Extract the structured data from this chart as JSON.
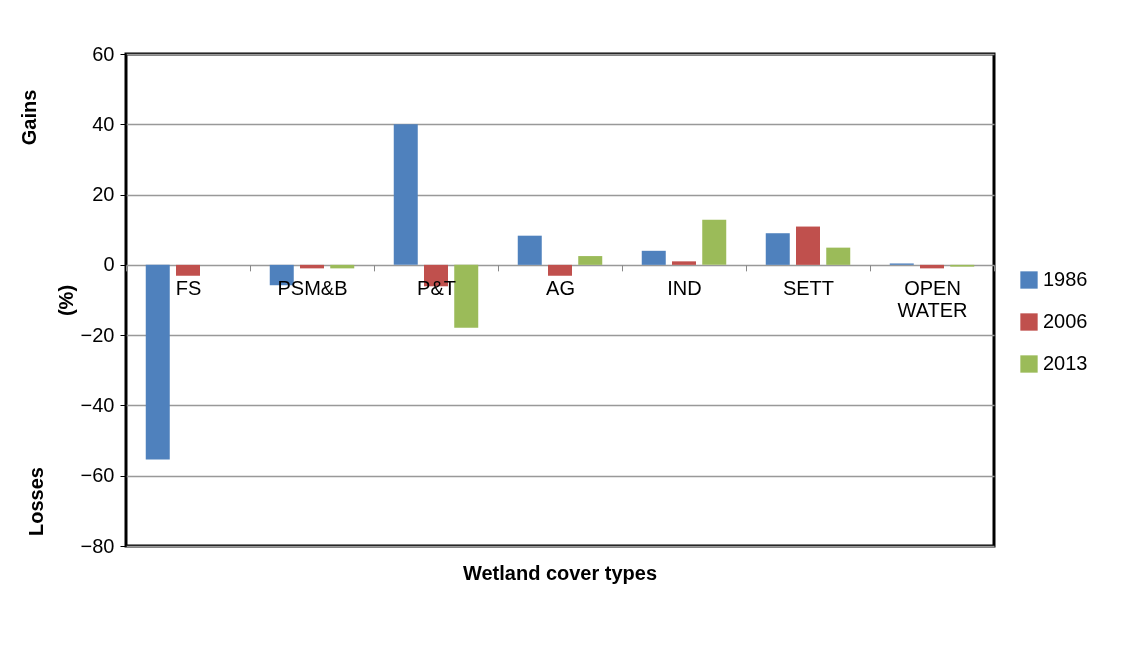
{
  "chart_data": {
    "type": "bar",
    "xlabel": "Wetland cover types",
    "ylabel": "(%)",
    "annotations": [
      "Gains",
      "Losses"
    ],
    "categories": [
      "FS",
      "PSM&B",
      "P&T",
      "AG",
      "IND",
      "SETT",
      "OPEN WATER"
    ],
    "series": [
      {
        "name": "1986",
        "color": "#4f81bd",
        "values": [
          -55.4,
          -5.8,
          40,
          8.3,
          4.0,
          9.0,
          0.4
        ]
      },
      {
        "name": "2006",
        "color": "#c0504d",
        "values": [
          -3.1,
          -1.0,
          -6.1,
          -3.1,
          1.0,
          10.9,
          -1.0
        ]
      },
      {
        "name": "2013",
        "color": "#9bbb59",
        "values": [
          0,
          -1.0,
          -17.9,
          2.5,
          12.8,
          4.9,
          -0.5
        ]
      }
    ],
    "ylim": [
      -80,
      60
    ],
    "yticks": [
      -80,
      -60,
      -40,
      -20,
      0,
      20,
      40,
      60
    ],
    "grid": "y",
    "legend": "right"
  }
}
